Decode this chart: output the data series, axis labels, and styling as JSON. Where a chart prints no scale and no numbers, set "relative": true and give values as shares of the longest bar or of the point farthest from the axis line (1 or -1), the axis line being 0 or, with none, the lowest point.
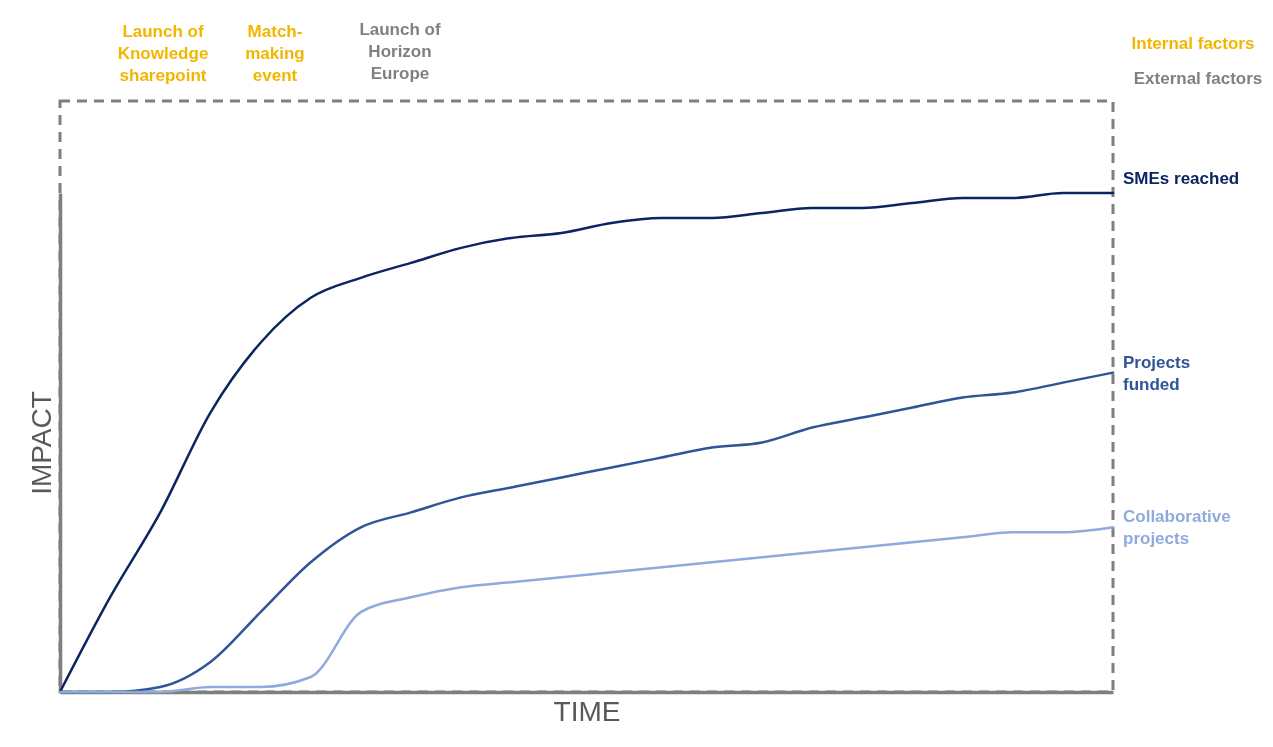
{
  "chart_data": {
    "type": "line",
    "relative": true,
    "xlabel": "TIME",
    "ylabel": "IMPACT",
    "tick_labels": false,
    "line_style": "solid",
    "categories": [
      null,
      null,
      null,
      null,
      null,
      null,
      null,
      null,
      null,
      null,
      null,
      null,
      null,
      null,
      null,
      null,
      null,
      null,
      null,
      null,
      null,
      null
    ],
    "series": [
      {
        "name": "SMEs reached",
        "color": "#0c2461",
        "values": [
          0,
          0.19,
          0.36,
          0.56,
          0.7,
          0.79,
          0.83,
          0.86,
          0.89,
          0.91,
          0.92,
          0.94,
          0.95,
          0.95,
          0.96,
          0.97,
          0.97,
          0.98,
          0.99,
          0.99,
          1,
          1
        ]
      },
      {
        "name": "Projects funded",
        "color": "#2f5597",
        "values": [
          0,
          0,
          0.01,
          0.06,
          0.16,
          0.26,
          0.33,
          0.36,
          0.39,
          0.41,
          0.43,
          0.45,
          0.47,
          0.49,
          0.5,
          0.53,
          0.55,
          0.57,
          0.59,
          0.6,
          0.62,
          0.64
        ]
      },
      {
        "name": "Collaborative projects",
        "color": "#8faadc",
        "values": [
          0,
          0,
          0,
          0.01,
          0.01,
          0.03,
          0.16,
          0.19,
          0.21,
          0.22,
          0.23,
          0.24,
          0.25,
          0.26,
          0.27,
          0.28,
          0.29,
          0.3,
          0.31,
          0.32,
          0.32,
          0.33
        ]
      }
    ],
    "annotations": [
      "Launch of Knowledge sharepoint",
      "Match-making event",
      "Launch of Horizon Europe",
      "Internal factors",
      "External factors"
    ]
  }
}
